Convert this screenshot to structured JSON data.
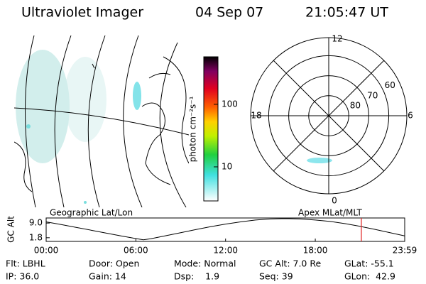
{
  "header": {
    "title": "Ultraviolet Imager",
    "date": "04 Sep 07",
    "time": "21:05:47 UT"
  },
  "map": {
    "label": "Geographic Lat/Lon"
  },
  "colorbar": {
    "label": "photon cm⁻²s⁻¹",
    "ticks": [
      10,
      100
    ],
    "lim": [
      2.85,
      575
    ],
    "log": true
  },
  "polar": {
    "label": "Apex MLat/MLT",
    "mlt_labels": [
      12,
      18,
      6,
      0
    ],
    "lat_labels": [
      60,
      70,
      80
    ],
    "lat_lim": [
      90,
      51
    ]
  },
  "altitude": {
    "type": "line",
    "ylabel": "GC Alt",
    "x": [
      0,
      1,
      2,
      3,
      4,
      5,
      6,
      6.5,
      7,
      8,
      9,
      10,
      11,
      12,
      13,
      14,
      15,
      16,
      17,
      18,
      19,
      20,
      21,
      22,
      23,
      23.98
    ],
    "values": [
      9.6,
      8.3,
      6.9,
      5.5,
      4.1,
      2.7,
      1.4,
      0.8,
      1.3,
      2.8,
      4.3,
      5.8,
      7.2,
      8.5,
      9.6,
      10.5,
      11.0,
      11.2,
      11.0,
      10.5,
      9.8,
      8.7,
      7.4,
      5.9,
      4.3,
      2.7
    ],
    "xlim": [
      0,
      23.98
    ],
    "ylim": [
      0,
      11.5
    ],
    "yticks": [
      {
        "value": 9,
        "label": "9.0"
      },
      1.8
    ],
    "xticks": [
      {
        "value": 0,
        "label": "00:00"
      },
      {
        "value": 6,
        "label": "06:00"
      },
      {
        "value": 12,
        "label": "12:00"
      },
      {
        "value": 18,
        "label": "18:00"
      },
      {
        "value": 23.98,
        "label": "23:59"
      }
    ],
    "marker_x": 21.08,
    "marker_color": "#e02020"
  },
  "status": [
    [
      "Flt: LBHL",
      "Door: Open",
      "Mode: Normal",
      "GC Alt: 7.0 Re",
      "GLat: -55.1"
    ],
    [
      "IP: 36.0",
      "Gain: 14",
      "Dsp:    1.9",
      "Seq: 39",
      "GLon:  42.9"
    ]
  ]
}
